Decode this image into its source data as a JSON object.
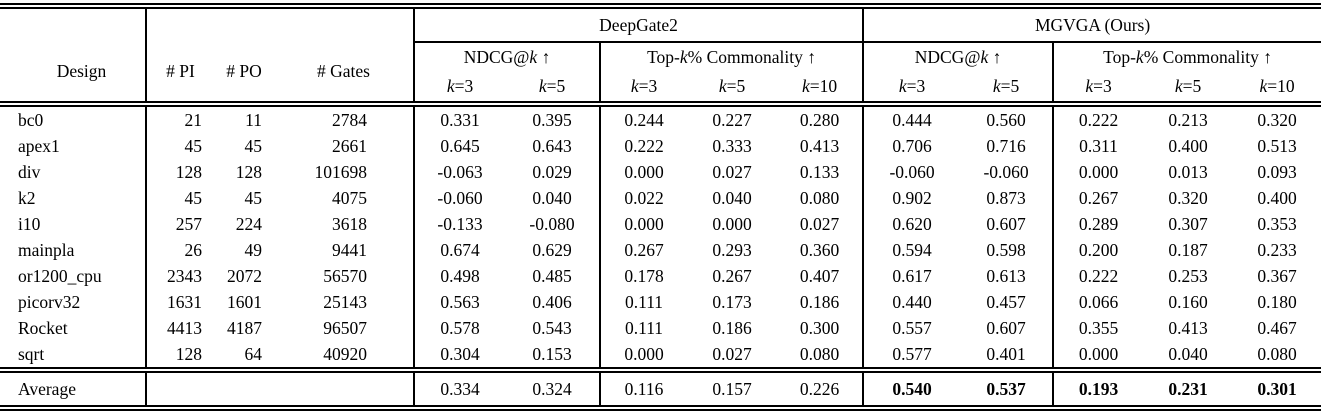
{
  "table": {
    "groups": {
      "deepgate2": "DeepGate2",
      "mgvga": "MGVGA (Ours)"
    },
    "columns": {
      "design": "Design",
      "pi": "# PI",
      "po": "# PO",
      "gates": "# Gates"
    },
    "metric_groups": {
      "ndcg": {
        "pre": "NDCG@",
        "k": "k",
        "post": " ↑"
      },
      "topk": {
        "pre": "Top-",
        "k": "k",
        "post": "% Commonality ↑"
      }
    },
    "k_headers": {
      "k3": {
        "k": "k",
        "eq": "=3"
      },
      "k5": {
        "k": "k",
        "eq": "=5"
      },
      "k10": {
        "k": "k",
        "eq": "=10"
      }
    },
    "rows": [
      {
        "design": "bc0",
        "pi": "21",
        "po": "11",
        "gates": "2784",
        "dg2": [
          "0.331",
          "0.395",
          "0.244",
          "0.227",
          "0.280"
        ],
        "mgvga": [
          "0.444",
          "0.560",
          "0.222",
          "0.213",
          "0.320"
        ]
      },
      {
        "design": "apex1",
        "pi": "45",
        "po": "45",
        "gates": "2661",
        "dg2": [
          "0.645",
          "0.643",
          "0.222",
          "0.333",
          "0.413"
        ],
        "mgvga": [
          "0.706",
          "0.716",
          "0.311",
          "0.400",
          "0.513"
        ]
      },
      {
        "design": "div",
        "pi": "128",
        "po": "128",
        "gates": "101698",
        "dg2": [
          "-0.063",
          "0.029",
          "0.000",
          "0.027",
          "0.133"
        ],
        "mgvga": [
          "-0.060",
          "-0.060",
          "0.000",
          "0.013",
          "0.093"
        ]
      },
      {
        "design": "k2",
        "pi": "45",
        "po": "45",
        "gates": "4075",
        "dg2": [
          "-0.060",
          "0.040",
          "0.022",
          "0.040",
          "0.080"
        ],
        "mgvga": [
          "0.902",
          "0.873",
          "0.267",
          "0.320",
          "0.400"
        ]
      },
      {
        "design": "i10",
        "pi": "257",
        "po": "224",
        "gates": "3618",
        "dg2": [
          "-0.133",
          "-0.080",
          "0.000",
          "0.000",
          "0.027"
        ],
        "mgvga": [
          "0.620",
          "0.607",
          "0.289",
          "0.307",
          "0.353"
        ]
      },
      {
        "design": "mainpla",
        "pi": "26",
        "po": "49",
        "gates": "9441",
        "dg2": [
          "0.674",
          "0.629",
          "0.267",
          "0.293",
          "0.360"
        ],
        "mgvga": [
          "0.594",
          "0.598",
          "0.200",
          "0.187",
          "0.233"
        ]
      },
      {
        "design": "or1200_cpu",
        "pi": "2343",
        "po": "2072",
        "gates": "56570",
        "dg2": [
          "0.498",
          "0.485",
          "0.178",
          "0.267",
          "0.407"
        ],
        "mgvga": [
          "0.617",
          "0.613",
          "0.222",
          "0.253",
          "0.367"
        ]
      },
      {
        "design": "picorv32",
        "pi": "1631",
        "po": "1601",
        "gates": "25143",
        "dg2": [
          "0.563",
          "0.406",
          "0.111",
          "0.173",
          "0.186"
        ],
        "mgvga": [
          "0.440",
          "0.457",
          "0.066",
          "0.160",
          "0.180"
        ]
      },
      {
        "design": "Rocket",
        "pi": "4413",
        "po": "4187",
        "gates": "96507",
        "dg2": [
          "0.578",
          "0.543",
          "0.111",
          "0.186",
          "0.300"
        ],
        "mgvga": [
          "0.557",
          "0.607",
          "0.355",
          "0.413",
          "0.467"
        ]
      },
      {
        "design": "sqrt",
        "pi": "128",
        "po": "64",
        "gates": "40920",
        "dg2": [
          "0.304",
          "0.153",
          "0.000",
          "0.027",
          "0.080"
        ],
        "mgvga": [
          "0.577",
          "0.401",
          "0.000",
          "0.040",
          "0.080"
        ]
      }
    ],
    "average": {
      "label": "Average",
      "dg2": [
        "0.334",
        "0.324",
        "0.116",
        "0.157",
        "0.226"
      ],
      "mgvga": [
        "0.540",
        "0.537",
        "0.193",
        "0.231",
        "0.301"
      ]
    }
  }
}
